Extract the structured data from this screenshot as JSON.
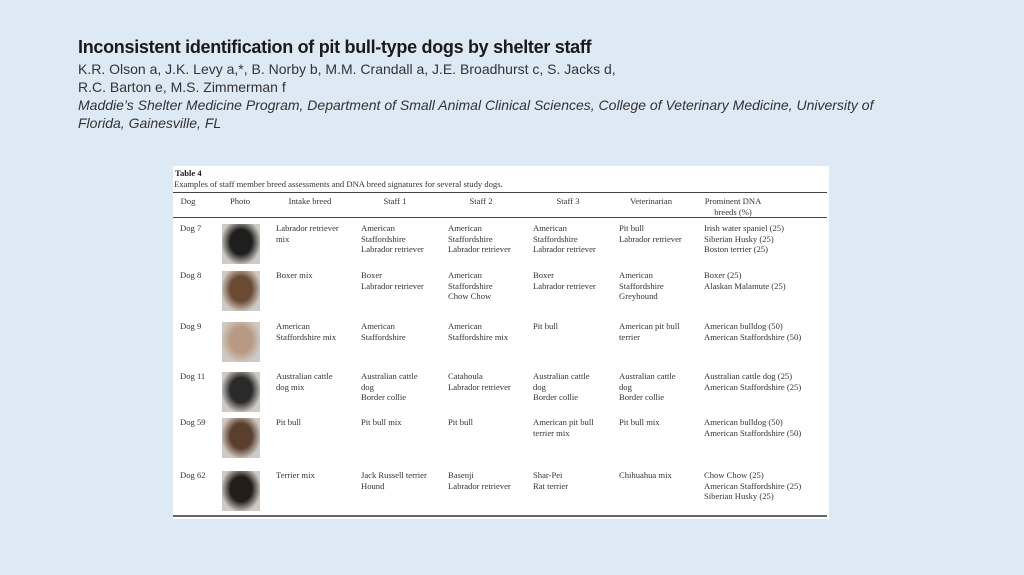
{
  "slide": {
    "title": "Inconsistent identification of pit bull-type dogs by shelter staff",
    "authors_line1": "K.R. Olson a, J.K. Levy a,*, B. Norby b, M.M. Crandall a, J.E. Broadhurst c, S. Jacks d,",
    "authors_line2": "R.C. Barton e, M.S. Zimmerman f",
    "affiliation_line1": "Maddie’s Shelter Medicine Program, Department of Small Animal Clinical Sciences, College of Veterinary Medicine, University of",
    "affiliation_line2": "Florida, Gainesville, FL"
  },
  "table": {
    "label": "Table 4",
    "caption": "Examples of staff member breed assessments and DNA breed signatures for several study dogs.",
    "headers": [
      "Dog",
      "Photo",
      "Intake breed",
      "Staff 1",
      "Staff 2",
      "Staff 3",
      "Veterinarian",
      "Prominent DNA\nbreeds (%)"
    ],
    "rows": [
      {
        "dog": "Dog 7",
        "intake": "Labrador retriever\nmix",
        "staff1": "American\nStaffordshire\nLabrador retriever",
        "staff2": "American\nStaffordshire\nLabrador retriever",
        "staff3": "American\nStaffordshire\nLabrador retriever",
        "vet": "Pit bull\nLabrador retriever",
        "dna": "Irish water spaniel (25)\nSiberian Husky (25)\nBoston terrier (25)"
      },
      {
        "dog": "Dog 8",
        "intake": "Boxer mix",
        "staff1": "Boxer\nLabrador retriever",
        "staff2": "American\nStaffordshire\nChow Chow",
        "staff3": "Boxer\nLabrador retriever",
        "vet": "American\nStaffordshire\nGreyhound",
        "dna": "Boxer (25)\nAlaskan Malamute (25)"
      },
      {
        "dog": "Dog 9",
        "intake": "American\nStaffordshire mix",
        "staff1": "American\nStaffordshire",
        "staff2": "American\nStaffordshire mix",
        "staff3": "Pit bull",
        "vet": "American pit bull\nterrier",
        "dna": "American bulldog (50)\nAmerican Staffordshire (50)"
      },
      {
        "dog": "Dog 11",
        "intake": "Australian cattle\ndog mix",
        "staff1": "Australian cattle\ndog\nBorder collie",
        "staff2": "Catahoula\nLabrador retriever",
        "staff3": "Australian cattle\ndog\nBorder collie",
        "vet": "Australian cattle\ndog\nBorder collie",
        "dna": "Australian cattle dog (25)\nAmerican Staffordshire (25)"
      },
      {
        "dog": "Dog 59",
        "intake": "Pit bull",
        "staff1": "Pit bull mix",
        "staff2": "Pit bull",
        "staff3": "American pit bull\nterrier mix",
        "vet": "Pit bull mix",
        "dna": "American bulldog (50)\nAmerican Staffordshire (50)"
      },
      {
        "dog": "Dog 62",
        "intake": "Terrier mix",
        "staff1": "Jack Russell terrier\nHound",
        "staff2": "Basenji\nLabrador retriever",
        "staff3": "Shar-Pei\nRat terrier",
        "vet": "Chihuahua mix",
        "dna": "Chow Chow (25)\nAmerican Staffordshire (25)\nSiberian Husky (25)"
      }
    ]
  },
  "photo_colors": [
    "#1e1e1e",
    "#6b4a33",
    "#b89a84",
    "#2a2a2a",
    "#5a3e2e",
    "#241c18"
  ]
}
